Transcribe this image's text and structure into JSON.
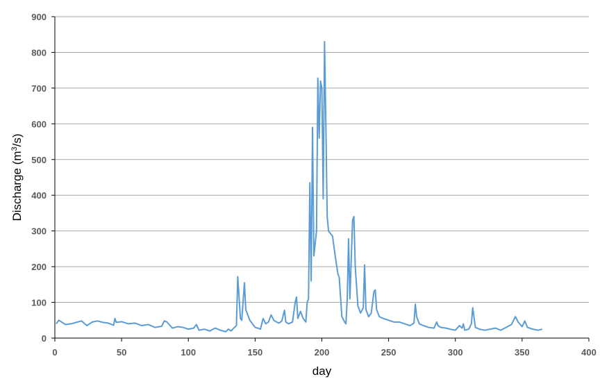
{
  "chart_data": {
    "type": "line",
    "title": "",
    "xlabel": "day",
    "ylabel_main": "Discharge (m",
    "ylabel_sup": "3",
    "ylabel_tail": "/s)",
    "xlim": [
      0,
      400
    ],
    "ylim": [
      0,
      900
    ],
    "x_ticks": [
      0,
      50,
      100,
      150,
      200,
      250,
      300,
      350,
      400
    ],
    "y_ticks": [
      0,
      100,
      200,
      300,
      400,
      500,
      600,
      700,
      800,
      900
    ],
    "grid": "horizontal",
    "colors": {
      "line": "#5b9bd5",
      "grid": "#a6a6a6",
      "axis": "#000000",
      "tick_text": "#595959"
    },
    "series": [
      {
        "x": [
          1,
          3,
          5,
          8,
          12,
          16,
          20,
          24,
          28,
          32,
          36,
          40,
          44,
          45,
          46,
          50,
          55,
          60,
          65,
          70,
          75,
          80,
          82,
          84,
          88,
          92,
          96,
          100,
          104,
          106,
          108,
          112,
          116,
          120,
          124,
          128,
          130,
          132,
          134,
          136,
          137,
          139,
          140,
          142,
          143,
          146,
          150,
          152,
          154,
          156,
          158,
          160,
          162,
          164,
          166,
          168,
          170,
          172,
          173,
          175,
          178,
          180,
          181,
          182,
          184,
          185,
          186,
          188,
          189,
          190,
          191,
          192,
          193,
          194,
          196,
          197,
          198,
          199,
          200,
          201,
          202,
          203,
          204,
          205,
          208,
          210,
          212,
          213,
          215,
          217,
          218,
          219,
          220,
          221,
          223,
          224,
          225,
          227,
          229,
          231,
          232,
          233,
          235,
          237,
          239,
          240,
          241,
          243,
          246,
          250,
          254,
          258,
          262,
          266,
          269,
          270,
          271,
          273,
          276,
          280,
          284,
          286,
          287,
          289,
          293,
          296,
          300,
          303,
          305,
          306,
          307,
          310,
          312,
          313,
          315,
          318,
          322,
          326,
          330,
          334,
          338,
          342,
          345,
          347,
          350,
          352,
          354,
          358,
          362,
          365
        ],
        "y": [
          40,
          50,
          45,
          38,
          40,
          44,
          48,
          35,
          45,
          48,
          44,
          42,
          36,
          55,
          44,
          46,
          40,
          42,
          35,
          38,
          30,
          33,
          48,
          45,
          28,
          32,
          30,
          25,
          28,
          38,
          22,
          25,
          20,
          28,
          22,
          18,
          25,
          20,
          28,
          35,
          172,
          55,
          50,
          155,
          80,
          50,
          30,
          28,
          25,
          55,
          40,
          45,
          65,
          50,
          45,
          42,
          48,
          78,
          45,
          40,
          45,
          100,
          115,
          55,
          75,
          65,
          55,
          45,
          100,
          110,
          435,
          160,
          590,
          230,
          300,
          728,
          560,
          720,
          700,
          390,
          830,
          600,
          340,
          300,
          285,
          230,
          180,
          170,
          60,
          45,
          40,
          110,
          278,
          110,
          330,
          340,
          200,
          90,
          70,
          85,
          205,
          80,
          60,
          70,
          130,
          135,
          80,
          60,
          55,
          50,
          45,
          45,
          40,
          35,
          42,
          95,
          60,
          40,
          35,
          30,
          28,
          45,
          35,
          30,
          28,
          25,
          22,
          35,
          28,
          40,
          22,
          25,
          40,
          85,
          30,
          25,
          22,
          25,
          28,
          22,
          30,
          38,
          60,
          45,
          32,
          48,
          30,
          25,
          22,
          25
        ]
      }
    ]
  }
}
